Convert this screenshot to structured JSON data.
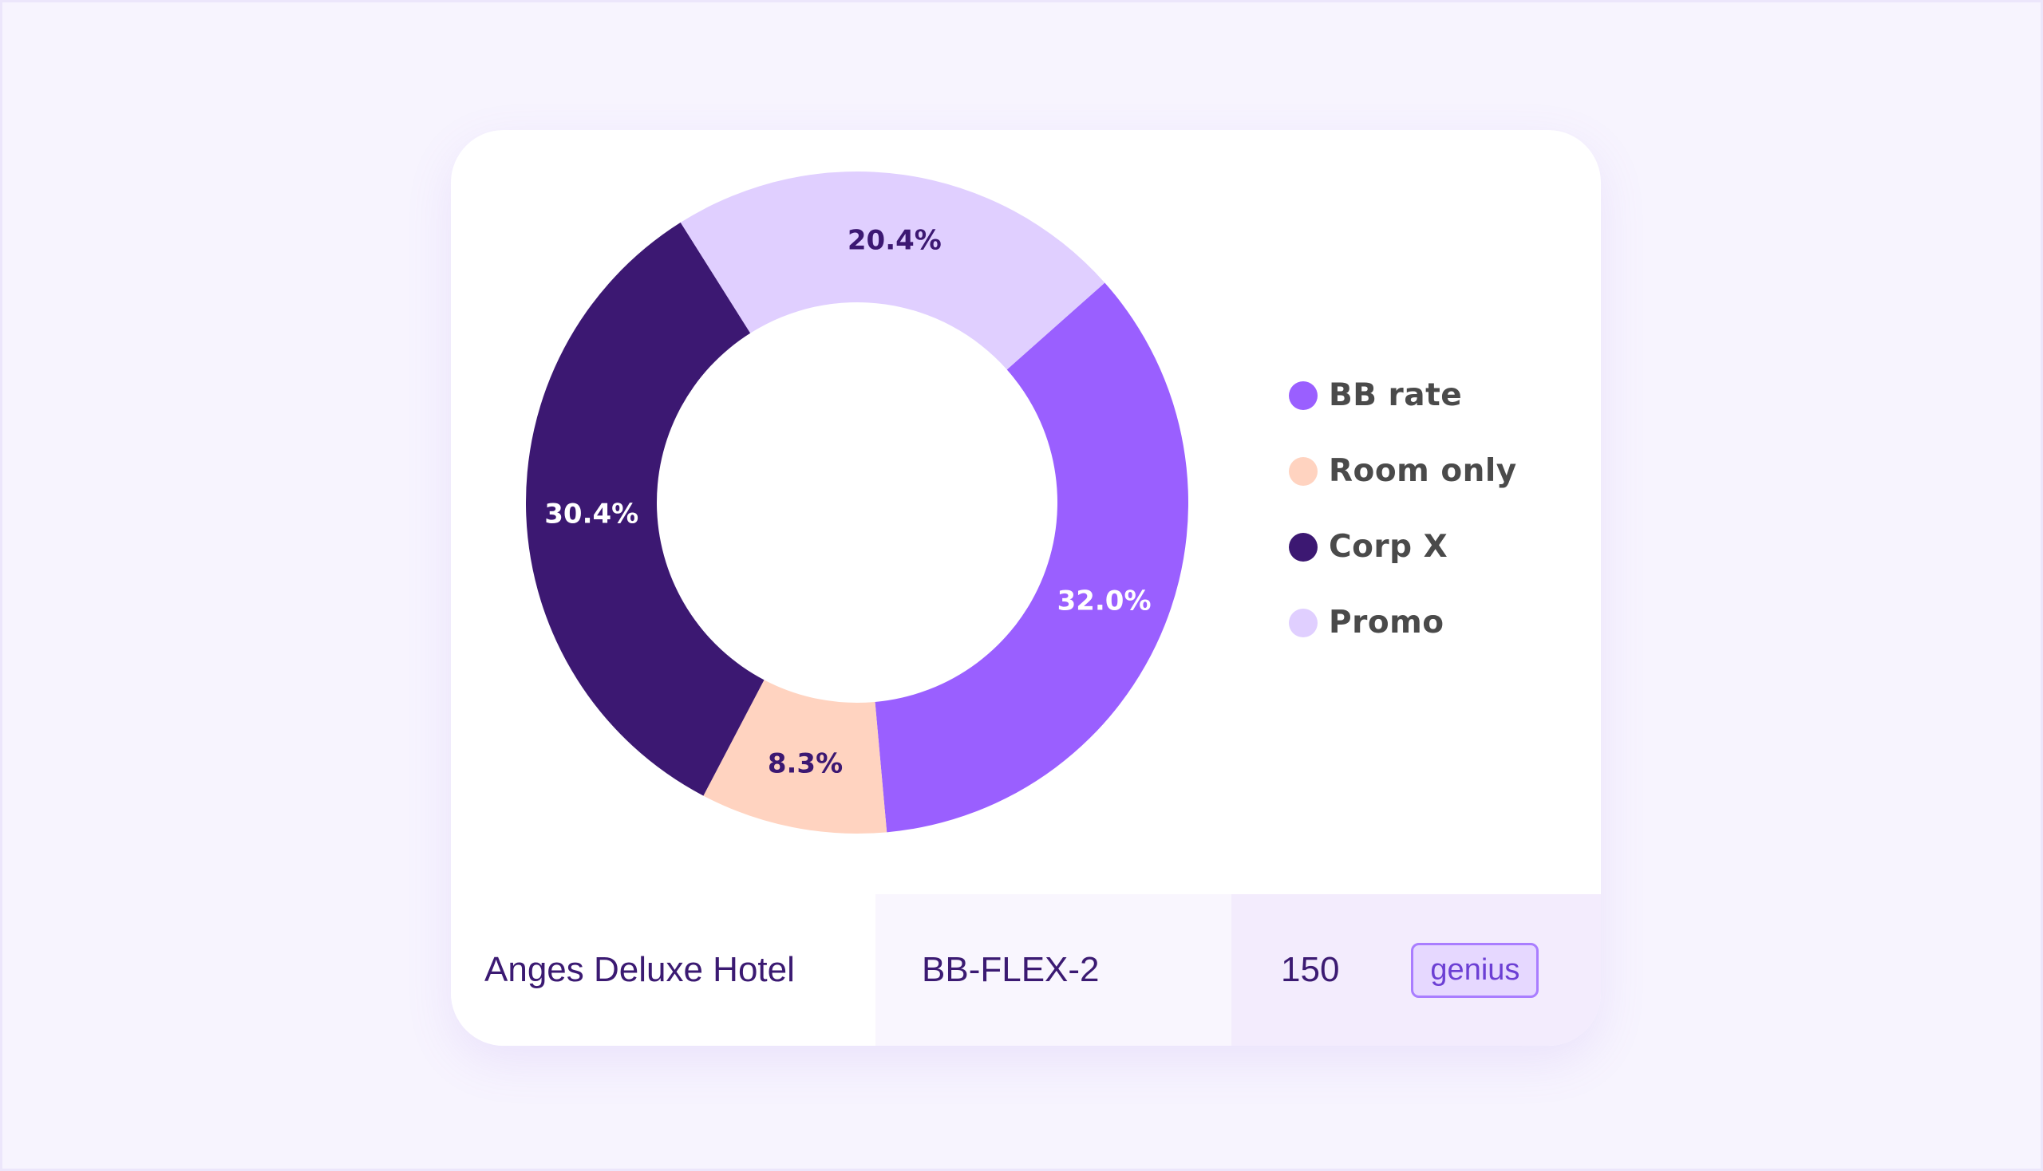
{
  "chart_data": {
    "type": "pie",
    "variant": "donut",
    "title": "",
    "categories": [
      "BB rate",
      "Room only",
      "Corp X",
      "Promo"
    ],
    "values": [
      32.0,
      8.3,
      30.4,
      20.4
    ],
    "value_labels": [
      "32.0%",
      "8.3%",
      "30.4%",
      "20.4%"
    ],
    "colors": [
      "#9a5fff",
      "#ffd3c0",
      "#3c1872",
      "#e0cfff"
    ],
    "label_colors": [
      "#ffffff",
      "#3c1872",
      "#ffffff",
      "#3c1872"
    ],
    "legend_position": "right"
  },
  "row": {
    "hotel": "Anges Deluxe Hotel",
    "rate_code": "BB-FLEX-2",
    "price": "150",
    "tag": "genius"
  }
}
